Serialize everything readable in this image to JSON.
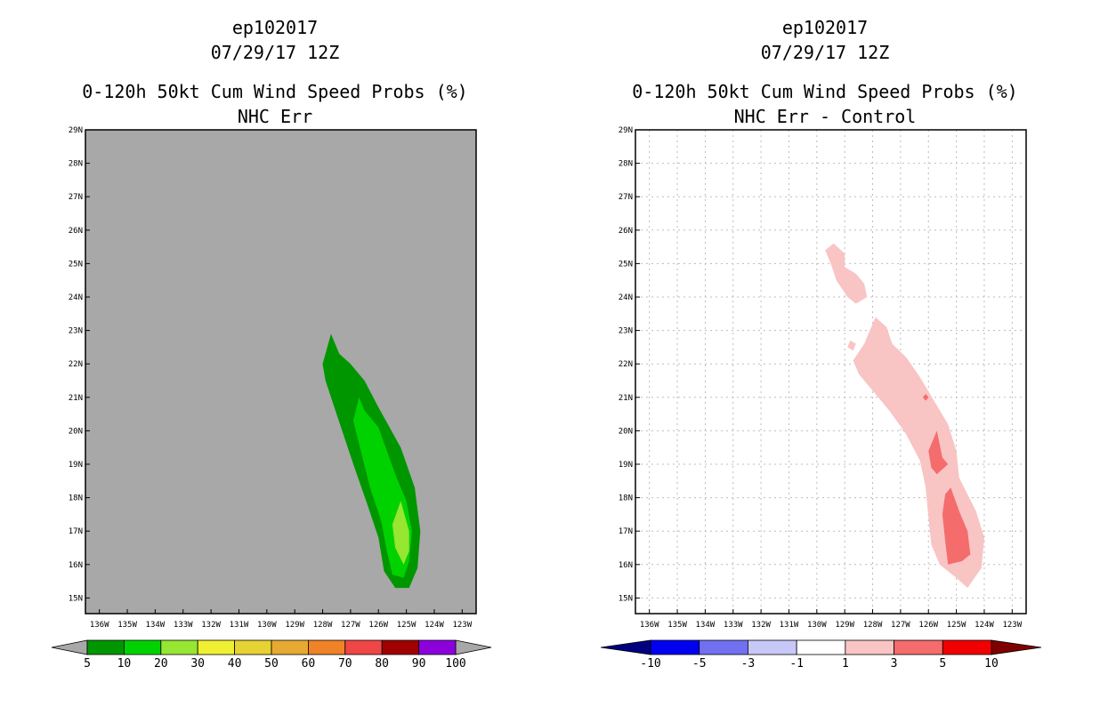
{
  "chart_data": [
    {
      "type": "contour-map",
      "title_lines": [
        "ep102017",
        "07/29/17 12Z",
        "0-120h 50kt Cum Wind Speed Probs (%)",
        "NHC Err"
      ],
      "background_color": "#a8a8a8",
      "grid": false,
      "lon_ticks": [
        "136W",
        "135W",
        "134W",
        "133W",
        "132W",
        "131W",
        "130W",
        "129W",
        "128W",
        "127W",
        "126W",
        "125W",
        "124W",
        "123W"
      ],
      "lat_ticks": [
        "15N",
        "16N",
        "17N",
        "18N",
        "19N",
        "20N",
        "21N",
        "22N",
        "23N",
        "24N",
        "25N",
        "26N",
        "27N",
        "28N",
        "29N"
      ],
      "lon_range": [
        -136.5,
        -122.5
      ],
      "lat_range": [
        14.6,
        29
      ],
      "colorbar": {
        "labels": [
          "5",
          "10",
          "20",
          "30",
          "40",
          "50",
          "60",
          "70",
          "80",
          "90",
          "100"
        ],
        "colors": [
          "#009600",
          "#00d200",
          "#96e632",
          "#f0f032",
          "#e6d232",
          "#e6aa32",
          "#f08228",
          "#f04646",
          "#a00000",
          "#8c00dc"
        ],
        "end_color": "#a8a8a8"
      },
      "contours": [
        {
          "level": "5-10",
          "color": "#009600",
          "lonlat": [
            [
              -127.7,
              22.9
            ],
            [
              -127.4,
              22.3
            ],
            [
              -127.0,
              22.0
            ],
            [
              -126.5,
              21.5
            ],
            [
              -126.0,
              20.7
            ],
            [
              -125.2,
              19.5
            ],
            [
              -124.7,
              18.3
            ],
            [
              -124.5,
              17.0
            ],
            [
              -124.6,
              15.9
            ],
            [
              -124.9,
              15.3
            ],
            [
              -125.4,
              15.3
            ],
            [
              -125.8,
              15.8
            ],
            [
              -126.0,
              16.8
            ],
            [
              -126.4,
              17.8
            ],
            [
              -126.9,
              19.0
            ],
            [
              -127.5,
              20.5
            ],
            [
              -127.9,
              21.5
            ],
            [
              -128.0,
              22.0
            ]
          ]
        },
        {
          "level": "10-20",
          "color": "#00d200",
          "lonlat": [
            [
              -126.7,
              21.0
            ],
            [
              -126.5,
              20.6
            ],
            [
              -126.0,
              20.1
            ],
            [
              -125.4,
              18.7
            ],
            [
              -125.0,
              17.9
            ],
            [
              -124.8,
              17.0
            ],
            [
              -124.9,
              16.1
            ],
            [
              -125.1,
              15.6
            ],
            [
              -125.5,
              15.7
            ],
            [
              -125.7,
              16.4
            ],
            [
              -125.9,
              17.3
            ],
            [
              -126.3,
              18.3
            ],
            [
              -126.6,
              19.3
            ],
            [
              -126.9,
              20.3
            ]
          ]
        },
        {
          "level": "20-30",
          "color": "#96e632",
          "lonlat": [
            [
              -125.2,
              17.9
            ],
            [
              -124.9,
              17.0
            ],
            [
              -124.9,
              16.4
            ],
            [
              -125.1,
              16.0
            ],
            [
              -125.4,
              16.5
            ],
            [
              -125.5,
              17.2
            ]
          ]
        }
      ]
    },
    {
      "type": "contour-map",
      "title_lines": [
        "ep102017",
        "07/29/17 12Z",
        "0-120h 50kt Cum Wind Speed Probs (%)",
        "NHC Err - Control"
      ],
      "background_color": "#ffffff",
      "grid": true,
      "lon_ticks": [
        "136W",
        "135W",
        "134W",
        "133W",
        "132W",
        "131W",
        "130W",
        "129W",
        "128W",
        "127W",
        "126W",
        "125W",
        "124W",
        "123W"
      ],
      "lat_ticks": [
        "15N",
        "16N",
        "17N",
        "18N",
        "19N",
        "20N",
        "21N",
        "22N",
        "23N",
        "24N",
        "25N",
        "26N",
        "27N",
        "28N",
        "29N"
      ],
      "lon_range": [
        -136.5,
        -122.5
      ],
      "lat_range": [
        14.6,
        29
      ],
      "colorbar": {
        "labels": [
          "-10",
          "-5",
          "-3",
          "-1",
          "1",
          "3",
          "5",
          "10"
        ],
        "colors": [
          "#0000f0",
          "#7070f0",
          "#c8c8f8",
          "#ffffff",
          "#f8c4c4",
          "#f46c6c",
          "#f00000"
        ],
        "left_color": "#000080",
        "right_color": "#800000"
      },
      "contours": [
        {
          "level": "1-3",
          "color": "#f8c4c4",
          "lonlat": [
            [
              -129.4,
              25.6
            ],
            [
              -129.0,
              25.3
            ],
            [
              -129.0,
              24.9
            ],
            [
              -128.6,
              24.7
            ],
            [
              -128.3,
              24.4
            ],
            [
              -128.2,
              24.0
            ],
            [
              -128.6,
              23.8
            ],
            [
              -128.9,
              24.0
            ],
            [
              -129.3,
              24.5
            ],
            [
              -129.5,
              25.0
            ],
            [
              -129.7,
              25.4
            ]
          ]
        },
        {
          "level": "1-3",
          "color": "#f8c4c4",
          "lonlat": [
            [
              -127.9,
              23.4
            ],
            [
              -127.5,
              23.1
            ],
            [
              -127.3,
              22.6
            ],
            [
              -126.8,
              22.2
            ],
            [
              -126.3,
              21.6
            ],
            [
              -125.8,
              20.9
            ],
            [
              -125.3,
              20.2
            ],
            [
              -125.0,
              19.4
            ],
            [
              -124.9,
              18.6
            ],
            [
              -124.3,
              17.6
            ],
            [
              -124.0,
              16.8
            ],
            [
              -124.1,
              15.9
            ],
            [
              -124.6,
              15.3
            ],
            [
              -125.0,
              15.6
            ],
            [
              -125.6,
              16.0
            ],
            [
              -125.9,
              16.6
            ],
            [
              -126.0,
              17.4
            ],
            [
              -126.1,
              18.3
            ],
            [
              -126.3,
              19.1
            ],
            [
              -126.8,
              19.9
            ],
            [
              -127.4,
              20.6
            ],
            [
              -128.0,
              21.2
            ],
            [
              -128.5,
              21.7
            ],
            [
              -128.7,
              22.1
            ],
            [
              -128.3,
              22.6
            ]
          ]
        },
        {
          "level": "1-3",
          "color": "#f8c4c4",
          "lonlat": [
            [
              -128.8,
              22.7
            ],
            [
              -128.6,
              22.6
            ],
            [
              -128.7,
              22.4
            ],
            [
              -128.9,
              22.5
            ]
          ]
        },
        {
          "level": "3-5",
          "color": "#f46c6c",
          "lonlat": [
            [
              -126.1,
              21.1
            ],
            [
              -126.0,
              21.0
            ],
            [
              -126.1,
              20.9
            ],
            [
              -126.2,
              21.0
            ]
          ]
        },
        {
          "level": "3-5",
          "color": "#f46c6c",
          "lonlat": [
            [
              -125.7,
              20.0
            ],
            [
              -125.5,
              19.2
            ],
            [
              -125.3,
              19.0
            ],
            [
              -125.7,
              18.7
            ],
            [
              -125.9,
              18.9
            ],
            [
              -126.0,
              19.4
            ]
          ]
        },
        {
          "level": "3-5",
          "color": "#f46c6c",
          "lonlat": [
            [
              -125.2,
              18.3
            ],
            [
              -124.9,
              17.6
            ],
            [
              -124.6,
              17.0
            ],
            [
              -124.5,
              16.3
            ],
            [
              -124.8,
              16.1
            ],
            [
              -125.3,
              16.0
            ],
            [
              -125.4,
              16.7
            ],
            [
              -125.5,
              17.5
            ],
            [
              -125.4,
              18.1
            ]
          ]
        }
      ]
    }
  ]
}
